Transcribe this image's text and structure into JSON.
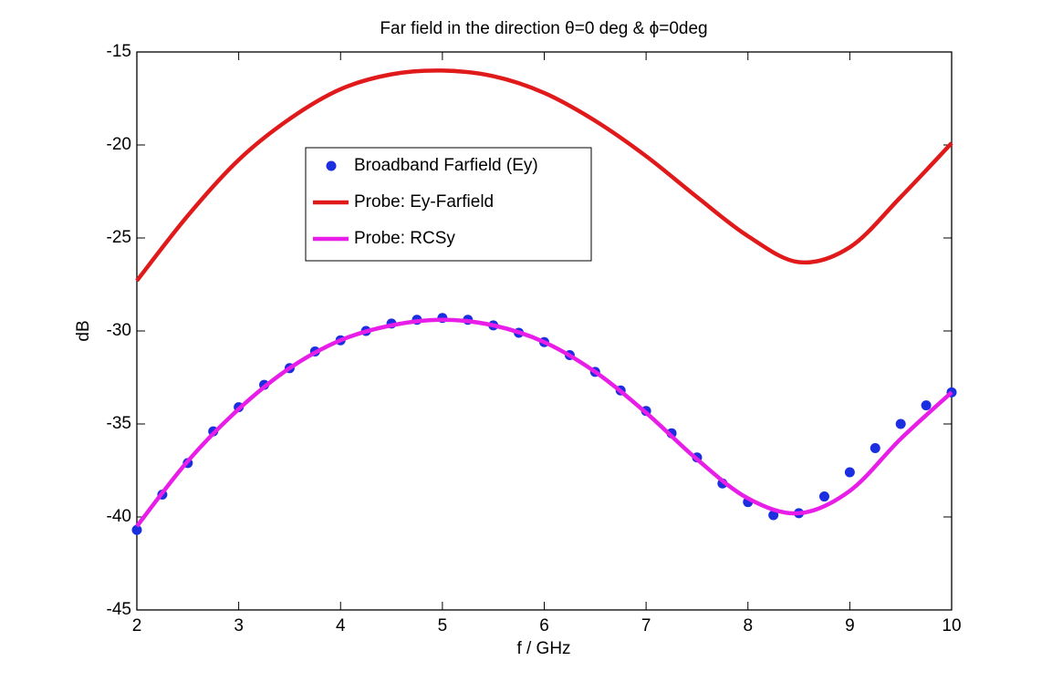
{
  "chart_data": {
    "type": "line",
    "title": "Far field in the direction θ=0 deg & ϕ=0deg",
    "x_label": "f / GHz",
    "y_label": "dB",
    "xlim": [
      2,
      10
    ],
    "xticks": [
      2,
      3,
      4,
      5,
      6,
      7,
      8,
      9,
      10
    ],
    "ylim": [
      -45,
      -15
    ],
    "yticks": [
      -45,
      -40,
      -35,
      -30,
      -25,
      -20,
      -15
    ],
    "grid": false,
    "series": [
      {
        "name": "Broadband Farfield (Ey)",
        "color": "#1c2fe0",
        "style": "markers",
        "x": [
          2,
          2.25,
          2.5,
          2.75,
          3,
          3.25,
          3.5,
          3.75,
          4,
          4.25,
          4.5,
          4.75,
          5,
          5.25,
          5.5,
          5.75,
          6,
          6.25,
          6.5,
          6.75,
          7,
          7.25,
          7.5,
          7.75,
          8,
          8.25,
          8.5,
          8.75,
          9,
          9.25,
          9.5,
          9.75,
          10
        ],
        "values": [
          -40.7,
          -38.8,
          -37.1,
          -35.4,
          -34.1,
          -32.9,
          -32.0,
          -31.1,
          -30.5,
          -30.0,
          -29.6,
          -29.4,
          -29.3,
          -29.4,
          -29.7,
          -30.1,
          -30.6,
          -31.3,
          -32.2,
          -33.2,
          -34.3,
          -35.5,
          -36.8,
          -38.2,
          -39.2,
          -39.9,
          -39.8,
          -38.9,
          -37.6,
          -36.3,
          -35.0,
          -34.0,
          -33.3
        ]
      },
      {
        "name": "Probe: Ey-Farfield",
        "color": "#e01a1a",
        "style": "line",
        "x": [
          2,
          2.5,
          3,
          3.5,
          4,
          4.5,
          5,
          5.5,
          6,
          6.5,
          7,
          7.5,
          8,
          8.5,
          9,
          9.5,
          10
        ],
        "values": [
          -27.3,
          -23.8,
          -20.8,
          -18.6,
          -17.0,
          -16.2,
          -16.0,
          -16.3,
          -17.2,
          -18.7,
          -20.6,
          -22.8,
          -24.9,
          -26.3,
          -25.5,
          -22.8,
          -19.9
        ]
      },
      {
        "name": "Probe: RCSy",
        "color": "#e81ee8",
        "style": "line",
        "x": [
          2,
          2.5,
          3,
          3.5,
          4,
          4.5,
          5,
          5.5,
          6,
          6.5,
          7,
          7.5,
          8,
          8.5,
          9,
          9.5,
          10
        ],
        "values": [
          -40.5,
          -37.0,
          -34.2,
          -32.0,
          -30.5,
          -29.7,
          -29.4,
          -29.7,
          -30.6,
          -32.2,
          -34.4,
          -36.9,
          -39.0,
          -39.8,
          -38.6,
          -35.8,
          -33.3
        ]
      }
    ]
  }
}
